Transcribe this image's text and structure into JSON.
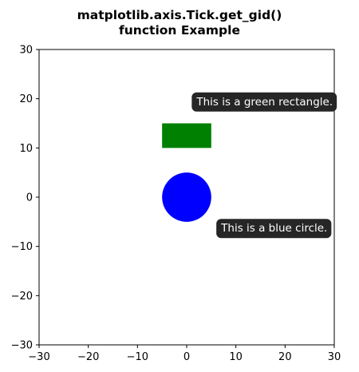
{
  "chart_data": {
    "type": "scatter",
    "title_line1": "matplotlib.axis.Tick.get_gid()",
    "title_line2": "function Example",
    "xlabel": "",
    "ylabel": "",
    "xlim": [
      -30,
      30
    ],
    "ylim": [
      -30,
      30
    ],
    "grid": false,
    "xticks": [
      -30,
      -20,
      -10,
      0,
      10,
      20,
      30
    ],
    "yticks": [
      -30,
      -20,
      -10,
      0,
      10,
      20,
      30
    ],
    "xtick_labels": [
      "−30",
      "−20",
      "−10",
      "0",
      "10",
      "20",
      "30"
    ],
    "ytick_labels": [
      "−30",
      "−20",
      "−10",
      "0",
      "10",
      "20",
      "30"
    ],
    "shapes": [
      {
        "kind": "rectangle",
        "x": -5,
        "y": 10,
        "width": 10,
        "height": 5,
        "color": "#008000"
      },
      {
        "kind": "circle",
        "cx": 0,
        "cy": 0,
        "r": 5,
        "color": "#0000ff"
      }
    ],
    "annotations": [
      {
        "text": "This is a green rectangle.",
        "x": 2,
        "y": 19.5
      },
      {
        "text": "This is a blue circle.",
        "x": 7,
        "y": -6.2
      }
    ],
    "annotation_box_color": "#262626",
    "annotation_text_color": "#ffffff"
  }
}
